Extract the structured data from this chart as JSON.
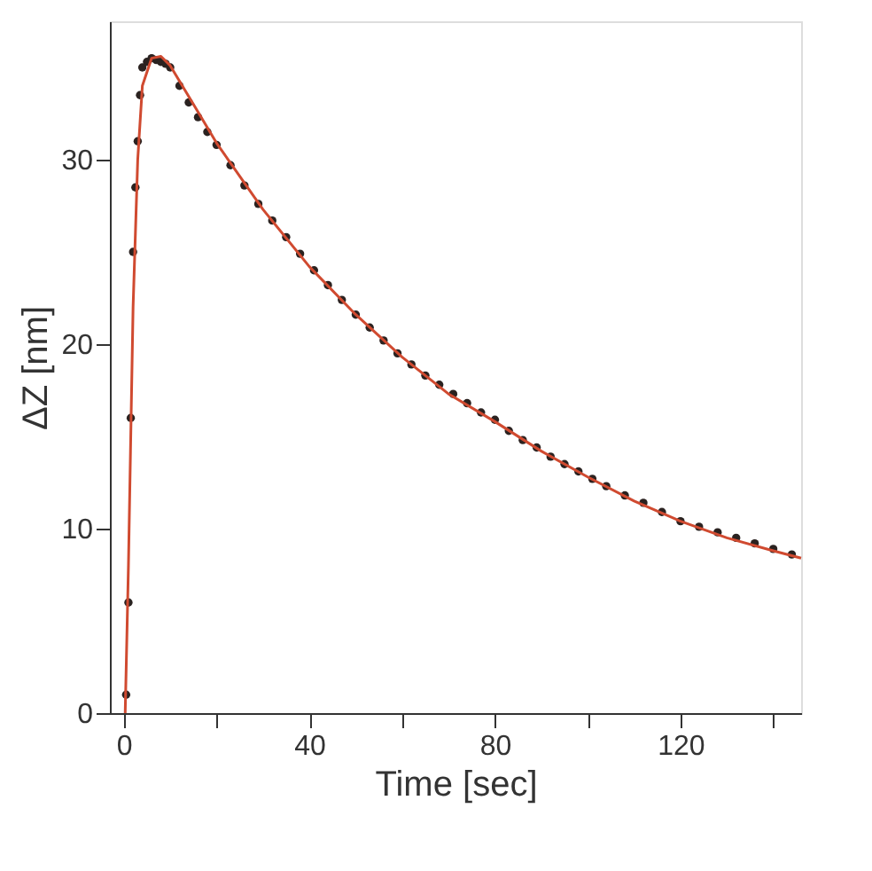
{
  "chart_data": {
    "type": "scatter",
    "xlabel": "Time [sec]",
    "ylabel": "ΔZ [nm]",
    "xlim": [
      -3,
      146
    ],
    "ylim": [
      0,
      37.5
    ],
    "xticks": [
      0,
      {
        "value": 20,
        "label": null
      },
      40,
      {
        "value": 60,
        "label": null
      },
      80,
      {
        "value": 100,
        "label": null
      },
      120,
      {
        "value": 140,
        "label": null
      }
    ],
    "yticks": [
      0,
      10,
      20,
      30
    ],
    "grid": false,
    "series": [
      {
        "marker": "circle",
        "color": "#2a2220",
        "x": [
          0.5,
          1,
          1.5,
          2,
          2.5,
          3,
          3.5,
          4,
          5,
          6,
          7,
          8,
          9,
          10,
          12,
          14,
          16,
          18,
          20,
          23,
          26,
          29,
          32,
          35,
          38,
          41,
          44,
          47,
          50,
          53,
          56,
          59,
          62,
          65,
          68,
          71,
          74,
          77,
          80,
          83,
          86,
          89,
          92,
          95,
          98,
          101,
          104,
          108,
          112,
          116,
          120,
          124,
          128,
          132,
          136,
          140,
          144
        ],
        "values": [
          1,
          6,
          16,
          25,
          28.5,
          31,
          33.5,
          35,
          35.3,
          35.5,
          35.4,
          35.3,
          35.2,
          35,
          34,
          33.1,
          32.3,
          31.5,
          30.8,
          29.7,
          28.6,
          27.6,
          26.7,
          25.8,
          24.9,
          24.0,
          23.2,
          22.4,
          21.6,
          20.9,
          20.2,
          19.5,
          18.9,
          18.3,
          17.8,
          17.3,
          16.8,
          16.3,
          15.9,
          15.3,
          14.8,
          14.4,
          13.9,
          13.5,
          13.1,
          12.7,
          12.3,
          11.8,
          11.4,
          10.9,
          10.4,
          10.1,
          9.8,
          9.5,
          9.2,
          8.9,
          8.6
        ]
      },
      {
        "type": "line",
        "line_style": "solid",
        "marker": "none",
        "color": "#d04a30",
        "x": [
          0.3,
          1,
          2,
          3,
          4,
          6,
          8,
          10,
          15,
          20,
          30,
          40,
          50,
          60,
          70,
          80,
          90,
          100,
          110,
          120,
          130,
          140,
          146
        ],
        "values": [
          0,
          8,
          22,
          30,
          34,
          35.5,
          35.6,
          35.1,
          33.0,
          30.9,
          27.3,
          24.2,
          21.6,
          19.3,
          17.3,
          15.8,
          14.2,
          12.8,
          11.5,
          10.4,
          9.5,
          8.8,
          8.4
        ]
      }
    ]
  }
}
